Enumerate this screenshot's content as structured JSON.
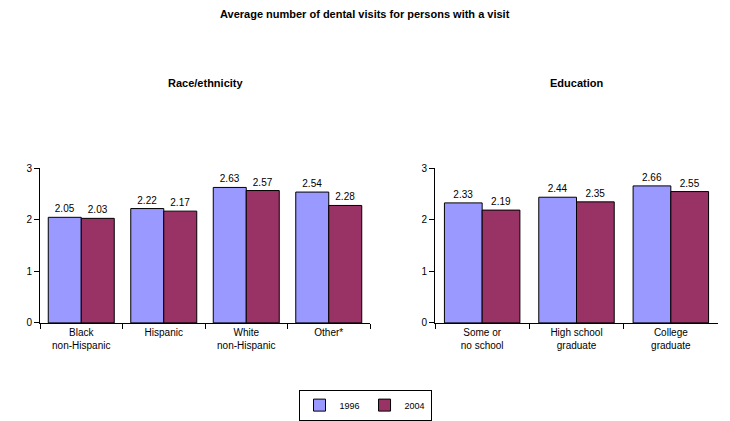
{
  "title": "Average number of dental visits for persons with a visit",
  "chart_data": [
    {
      "type": "bar",
      "title": "Race/ethnicity",
      "categories": [
        "Black non-Hispanic",
        "Hispanic",
        "White non-Hispanic",
        "Other*"
      ],
      "series": [
        {
          "name": "1996",
          "color": "#9999ff",
          "values": [
            2.05,
            2.22,
            2.63,
            2.54
          ]
        },
        {
          "name": "2004",
          "color": "#993366",
          "values": [
            2.03,
            2.17,
            2.57,
            2.28
          ]
        }
      ],
      "ylim": [
        0,
        3
      ],
      "yticks": [
        0,
        1,
        2,
        3
      ],
      "grid": false,
      "data_labels": true,
      "legend": "bottom"
    },
    {
      "type": "bar",
      "title": "Education",
      "categories": [
        "Some or no school",
        "High school graduate",
        "College graduate"
      ],
      "series": [
        {
          "name": "1996",
          "color": "#9999ff",
          "values": [
            2.33,
            2.44,
            2.66
          ]
        },
        {
          "name": "2004",
          "color": "#993366",
          "values": [
            2.19,
            2.35,
            2.55
          ]
        }
      ],
      "ylim": [
        0,
        3
      ],
      "yticks": [
        0,
        1,
        2,
        3
      ],
      "grid": false,
      "data_labels": true,
      "legend": "bottom"
    }
  ]
}
